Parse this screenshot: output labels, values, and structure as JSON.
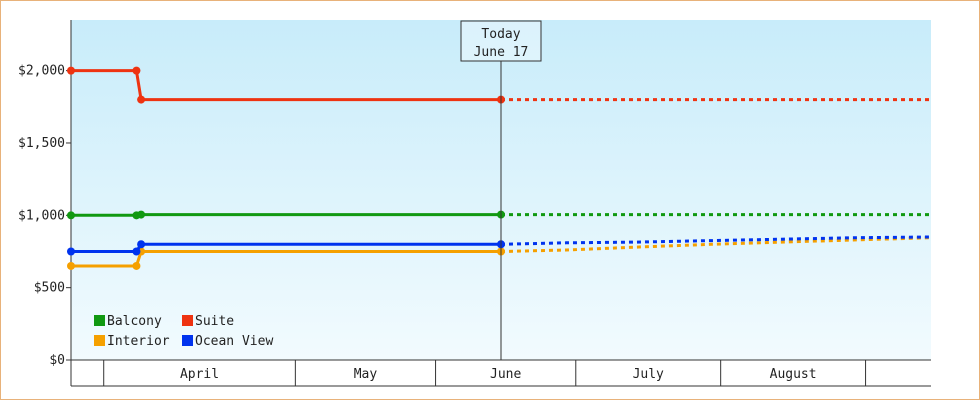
{
  "chart_data": {
    "type": "line",
    "title": "",
    "xlabel": "",
    "ylabel": "",
    "y_tick_labels": [
      "$0",
      "$500",
      "$1,000",
      "$1,500",
      "$2,000"
    ],
    "y_tick_values": [
      0,
      500,
      1000,
      1500,
      2000
    ],
    "ylim": [
      0,
      2350
    ],
    "x_domain": [
      "2024-03-17",
      "2024-09-17"
    ],
    "months": [
      {
        "label": "April",
        "start": "2024-03-24",
        "end": "2024-05-04"
      },
      {
        "label": "May",
        "start": "2024-05-04",
        "end": "2024-06-03"
      },
      {
        "label": "June",
        "start": "2024-06-03",
        "end": "2024-07-03"
      },
      {
        "label": "July",
        "start": "2024-07-03",
        "end": "2024-08-03"
      },
      {
        "label": "August",
        "start": "2024-08-03",
        "end": "2024-09-03"
      },
      {
        "label": "",
        "start": "2024-09-03",
        "end": "2024-09-17"
      }
    ],
    "today": {
      "line1": "Today",
      "line2": "June 17",
      "date": "2024-06-17"
    },
    "legend": {
      "placement": "bottom-left"
    },
    "series": [
      {
        "name": "Balcony",
        "color": "#119911",
        "points": [
          [
            "2024-03-17",
            1000
          ],
          [
            "2024-03-31",
            1000
          ],
          [
            "2024-04-01",
            1005
          ],
          [
            "2024-06-17",
            1005
          ]
        ],
        "forecast": [
          [
            "2024-06-17",
            1005
          ],
          [
            "2024-09-17",
            1005
          ]
        ]
      },
      {
        "name": "Suite",
        "color": "#ee3311",
        "points": [
          [
            "2024-03-17",
            2000
          ],
          [
            "2024-03-31",
            2000
          ],
          [
            "2024-04-01",
            1800
          ],
          [
            "2024-06-17",
            1800
          ]
        ],
        "forecast": [
          [
            "2024-06-17",
            1800
          ],
          [
            "2024-09-17",
            1800
          ]
        ]
      },
      {
        "name": "Interior",
        "color": "#f5a000",
        "points": [
          [
            "2024-03-17",
            650
          ],
          [
            "2024-03-31",
            650
          ],
          [
            "2024-04-01",
            750
          ],
          [
            "2024-06-17",
            750
          ]
        ],
        "forecast": [
          [
            "2024-06-17",
            750
          ],
          [
            "2024-07-01",
            760
          ],
          [
            "2024-07-16",
            780
          ],
          [
            "2024-08-01",
            800
          ],
          [
            "2024-08-16",
            815
          ],
          [
            "2024-09-01",
            830
          ],
          [
            "2024-09-17",
            845
          ]
        ]
      },
      {
        "name": "Ocean View",
        "color": "#0033ee",
        "points": [
          [
            "2024-03-17",
            750
          ],
          [
            "2024-03-31",
            750
          ],
          [
            "2024-04-01",
            800
          ],
          [
            "2024-06-17",
            800
          ]
        ],
        "forecast": [
          [
            "2024-06-17",
            800
          ],
          [
            "2024-07-01",
            810
          ],
          [
            "2024-07-16",
            815
          ],
          [
            "2024-08-01",
            825
          ],
          [
            "2024-08-16",
            835
          ],
          [
            "2024-09-01",
            845
          ],
          [
            "2024-09-17",
            850
          ]
        ]
      }
    ],
    "legend_order": [
      "Balcony",
      "Suite",
      "Interior",
      "Ocean View"
    ]
  }
}
